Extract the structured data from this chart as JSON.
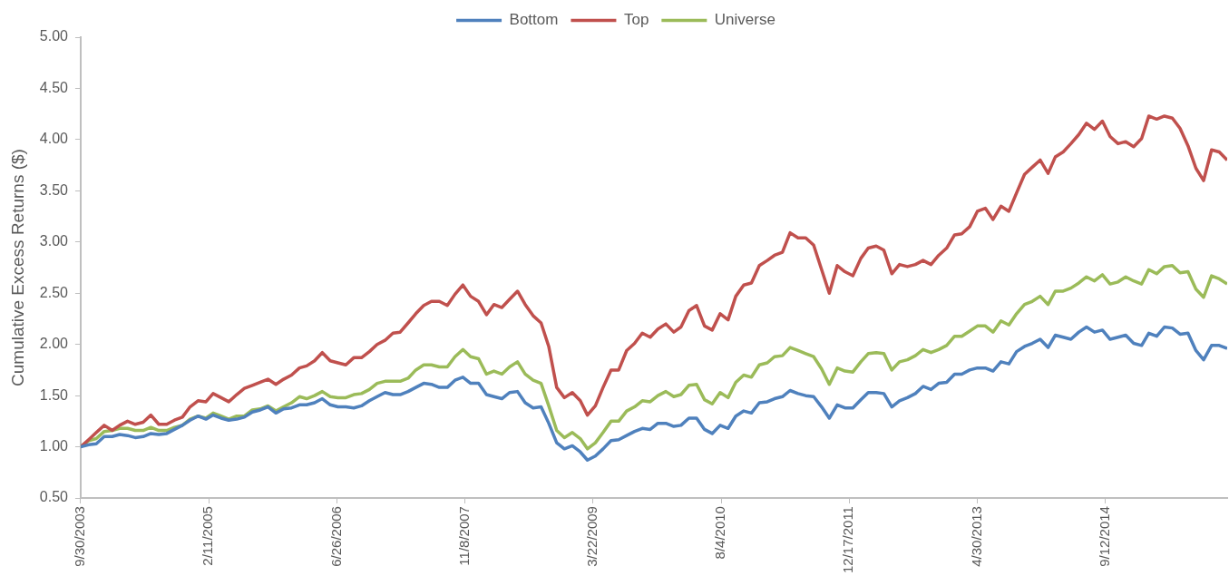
{
  "chart_data": {
    "type": "line",
    "ylabel": "Cumulative Excess Returns ($)",
    "legend": "top",
    "grid": false,
    "marker": "none",
    "x": [
      "2003-09-30",
      "2003-10-31",
      "2003-11-30",
      "2003-12-31",
      "2004-01-31",
      "2004-02-29",
      "2004-03-31",
      "2004-04-30",
      "2004-05-31",
      "2004-06-30",
      "2004-07-31",
      "2004-08-31",
      "2004-09-30",
      "2004-10-31",
      "2004-11-30",
      "2004-12-31",
      "2005-01-31",
      "2005-02-28",
      "2005-03-31",
      "2005-04-30",
      "2005-05-31",
      "2005-06-30",
      "2005-07-31",
      "2005-08-31",
      "2005-09-30",
      "2005-10-31",
      "2005-11-30",
      "2005-12-31",
      "2006-01-31",
      "2006-02-28",
      "2006-03-31",
      "2006-04-30",
      "2006-05-31",
      "2006-06-30",
      "2006-07-31",
      "2006-08-31",
      "2006-09-30",
      "2006-10-31",
      "2006-11-30",
      "2006-12-31",
      "2007-01-31",
      "2007-02-28",
      "2007-03-31",
      "2007-04-30",
      "2007-05-31",
      "2007-06-30",
      "2007-07-31",
      "2007-08-31",
      "2007-09-30",
      "2007-10-31",
      "2007-11-30",
      "2007-12-31",
      "2008-01-31",
      "2008-02-29",
      "2008-03-31",
      "2008-04-30",
      "2008-05-31",
      "2008-06-30",
      "2008-07-31",
      "2008-08-31",
      "2008-09-30",
      "2008-10-31",
      "2008-11-30",
      "2008-12-31",
      "2009-01-31",
      "2009-02-28",
      "2009-03-31",
      "2009-04-30",
      "2009-05-31",
      "2009-06-30",
      "2009-07-31",
      "2009-08-31",
      "2009-09-30",
      "2009-10-31",
      "2009-11-30",
      "2009-12-31",
      "2010-01-31",
      "2010-02-28",
      "2010-03-31",
      "2010-04-30",
      "2010-05-31",
      "2010-06-30",
      "2010-07-31",
      "2010-08-31",
      "2010-09-30",
      "2010-10-31",
      "2010-11-30",
      "2010-12-31",
      "2011-01-31",
      "2011-02-28",
      "2011-03-31",
      "2011-04-30",
      "2011-05-31",
      "2011-06-30",
      "2011-07-31",
      "2011-08-31",
      "2011-09-30",
      "2011-10-31",
      "2011-11-30",
      "2011-12-31",
      "2012-01-31",
      "2012-02-29",
      "2012-03-31",
      "2012-04-30",
      "2012-05-31",
      "2012-06-30",
      "2012-07-31",
      "2012-08-31",
      "2012-09-30",
      "2012-10-31",
      "2012-11-30",
      "2012-12-31",
      "2013-01-31",
      "2013-02-28",
      "2013-03-31",
      "2013-04-30",
      "2013-05-31",
      "2013-06-30",
      "2013-07-31",
      "2013-08-31",
      "2013-09-30",
      "2013-10-31",
      "2013-11-30",
      "2013-12-31",
      "2014-01-31",
      "2014-02-28",
      "2014-03-31",
      "2014-04-30",
      "2014-05-31",
      "2014-06-30",
      "2014-07-31",
      "2014-08-31",
      "2014-09-30",
      "2014-10-31",
      "2014-11-30",
      "2014-12-31",
      "2015-01-31",
      "2015-02-28",
      "2015-03-31",
      "2015-04-30",
      "2015-05-31",
      "2015-06-30",
      "2015-07-31",
      "2015-08-31",
      "2015-09-30",
      "2015-10-31",
      "2015-11-30",
      "2015-12-31"
    ],
    "series": [
      {
        "name": "Bottom",
        "color": "#4f81bd",
        "values": [
          1.0,
          1.02,
          1.03,
          1.1,
          1.1,
          1.12,
          1.11,
          1.09,
          1.1,
          1.13,
          1.12,
          1.13,
          1.17,
          1.21,
          1.26,
          1.3,
          1.27,
          1.31,
          1.28,
          1.26,
          1.27,
          1.29,
          1.34,
          1.36,
          1.39,
          1.33,
          1.37,
          1.38,
          1.41,
          1.41,
          1.43,
          1.47,
          1.41,
          1.39,
          1.39,
          1.38,
          1.4,
          1.45,
          1.49,
          1.53,
          1.51,
          1.51,
          1.54,
          1.58,
          1.62,
          1.61,
          1.58,
          1.58,
          1.65,
          1.68,
          1.62,
          1.62,
          1.51,
          1.49,
          1.47,
          1.53,
          1.54,
          1.43,
          1.38,
          1.39,
          1.23,
          1.04,
          0.98,
          1.01,
          0.95,
          0.87,
          0.91,
          0.98,
          1.06,
          1.07,
          1.11,
          1.15,
          1.18,
          1.17,
          1.23,
          1.23,
          1.2,
          1.21,
          1.28,
          1.28,
          1.17,
          1.13,
          1.21,
          1.18,
          1.3,
          1.35,
          1.33,
          1.43,
          1.44,
          1.47,
          1.49,
          1.55,
          1.52,
          1.5,
          1.49,
          1.39,
          1.28,
          1.41,
          1.38,
          1.38,
          1.46,
          1.53,
          1.53,
          1.52,
          1.39,
          1.45,
          1.48,
          1.52,
          1.59,
          1.56,
          1.62,
          1.63,
          1.71,
          1.71,
          1.75,
          1.77,
          1.77,
          1.74,
          1.83,
          1.81,
          1.93,
          1.98,
          2.01,
          2.05,
          1.97,
          2.09,
          2.07,
          2.05,
          2.12,
          2.17,
          2.12,
          2.14,
          2.05,
          2.07,
          2.09,
          2.01,
          1.99,
          2.11,
          2.08,
          2.17,
          2.16,
          2.1,
          2.11,
          1.94,
          1.85,
          1.99,
          1.99,
          1.96
        ]
      },
      {
        "name": "Top",
        "color": "#c0504d",
        "values": [
          1.0,
          1.07,
          1.14,
          1.21,
          1.16,
          1.21,
          1.25,
          1.22,
          1.24,
          1.31,
          1.22,
          1.22,
          1.26,
          1.29,
          1.39,
          1.45,
          1.44,
          1.52,
          1.48,
          1.44,
          1.51,
          1.57,
          1.6,
          1.63,
          1.66,
          1.61,
          1.66,
          1.7,
          1.77,
          1.79,
          1.84,
          1.92,
          1.84,
          1.82,
          1.8,
          1.87,
          1.87,
          1.93,
          2.0,
          2.04,
          2.11,
          2.12,
          2.21,
          2.3,
          2.38,
          2.42,
          2.42,
          2.38,
          2.49,
          2.58,
          2.47,
          2.42,
          2.29,
          2.39,
          2.36,
          2.44,
          2.52,
          2.39,
          2.28,
          2.21,
          1.98,
          1.58,
          1.48,
          1.53,
          1.45,
          1.31,
          1.4,
          1.58,
          1.75,
          1.75,
          1.94,
          2.01,
          2.11,
          2.07,
          2.15,
          2.2,
          2.12,
          2.17,
          2.33,
          2.38,
          2.18,
          2.14,
          2.3,
          2.24,
          2.47,
          2.58,
          2.6,
          2.77,
          2.82,
          2.87,
          2.9,
          3.09,
          3.04,
          3.04,
          2.97,
          2.73,
          2.5,
          2.77,
          2.71,
          2.67,
          2.84,
          2.94,
          2.96,
          2.92,
          2.69,
          2.78,
          2.76,
          2.78,
          2.82,
          2.78,
          2.87,
          2.94,
          3.07,
          3.08,
          3.15,
          3.3,
          3.33,
          3.22,
          3.35,
          3.3,
          3.48,
          3.66,
          3.73,
          3.8,
          3.67,
          3.83,
          3.88,
          3.96,
          4.05,
          4.16,
          4.1,
          4.18,
          4.03,
          3.96,
          3.98,
          3.93,
          4.01,
          4.23,
          4.2,
          4.23,
          4.21,
          4.11,
          3.94,
          3.72,
          3.6,
          3.9,
          3.88,
          3.8
        ]
      },
      {
        "name": "Universe",
        "color": "#9bbb59",
        "values": [
          1.0,
          1.06,
          1.08,
          1.15,
          1.16,
          1.18,
          1.18,
          1.16,
          1.16,
          1.19,
          1.16,
          1.16,
          1.19,
          1.21,
          1.27,
          1.3,
          1.28,
          1.33,
          1.3,
          1.27,
          1.3,
          1.3,
          1.36,
          1.37,
          1.4,
          1.35,
          1.39,
          1.43,
          1.49,
          1.47,
          1.5,
          1.54,
          1.49,
          1.48,
          1.48,
          1.51,
          1.52,
          1.56,
          1.62,
          1.64,
          1.64,
          1.64,
          1.67,
          1.75,
          1.8,
          1.8,
          1.78,
          1.78,
          1.88,
          1.95,
          1.88,
          1.86,
          1.71,
          1.74,
          1.71,
          1.78,
          1.83,
          1.71,
          1.65,
          1.62,
          1.4,
          1.16,
          1.09,
          1.14,
          1.08,
          0.98,
          1.04,
          1.14,
          1.25,
          1.25,
          1.35,
          1.39,
          1.45,
          1.44,
          1.5,
          1.54,
          1.49,
          1.51,
          1.6,
          1.61,
          1.46,
          1.42,
          1.53,
          1.48,
          1.63,
          1.7,
          1.68,
          1.8,
          1.82,
          1.88,
          1.89,
          1.97,
          1.94,
          1.91,
          1.88,
          1.76,
          1.61,
          1.77,
          1.74,
          1.73,
          1.83,
          1.91,
          1.92,
          1.91,
          1.75,
          1.83,
          1.85,
          1.89,
          1.95,
          1.92,
          1.95,
          1.99,
          2.08,
          2.08,
          2.13,
          2.18,
          2.18,
          2.12,
          2.23,
          2.19,
          2.3,
          2.39,
          2.42,
          2.47,
          2.39,
          2.52,
          2.52,
          2.55,
          2.6,
          2.66,
          2.62,
          2.68,
          2.59,
          2.61,
          2.66,
          2.62,
          2.59,
          2.73,
          2.69,
          2.76,
          2.77,
          2.7,
          2.71,
          2.54,
          2.46,
          2.67,
          2.64,
          2.59
        ]
      }
    ],
    "xlim": [
      "2003-09-30",
      "2015-12-31"
    ],
    "xticks": [
      {
        "value": "2003-09-30",
        "label": "9/30/2003"
      },
      {
        "value": "2005-02-11",
        "label": "2/11/2005"
      },
      {
        "value": "2006-06-26",
        "label": "6/26/2006"
      },
      {
        "value": "2007-11-08",
        "label": "11/8/2007"
      },
      {
        "value": "2009-03-22",
        "label": "3/22/2009"
      },
      {
        "value": "2010-08-04",
        "label": "8/4/2010"
      },
      {
        "value": "2011-12-17",
        "label": "12/17/2011"
      },
      {
        "value": "2013-04-30",
        "label": "4/30/2013"
      },
      {
        "value": "2014-09-12",
        "label": "9/12/2014"
      }
    ],
    "ylim": [
      0.5,
      5
    ],
    "yticks": [
      {
        "value": 0.5,
        "label": "0.50"
      },
      {
        "value": 1,
        "label": "1.00"
      },
      {
        "value": 1.5,
        "label": "1.50"
      },
      {
        "value": 2,
        "label": "2.00"
      },
      {
        "value": 2.5,
        "label": "2.50"
      },
      {
        "value": 3,
        "label": "3.00"
      },
      {
        "value": 3.5,
        "label": "3.50"
      },
      {
        "value": 4,
        "label": "4.00"
      },
      {
        "value": 4.5,
        "label": "4.50"
      },
      {
        "value": 5,
        "label": "5.00"
      }
    ]
  }
}
